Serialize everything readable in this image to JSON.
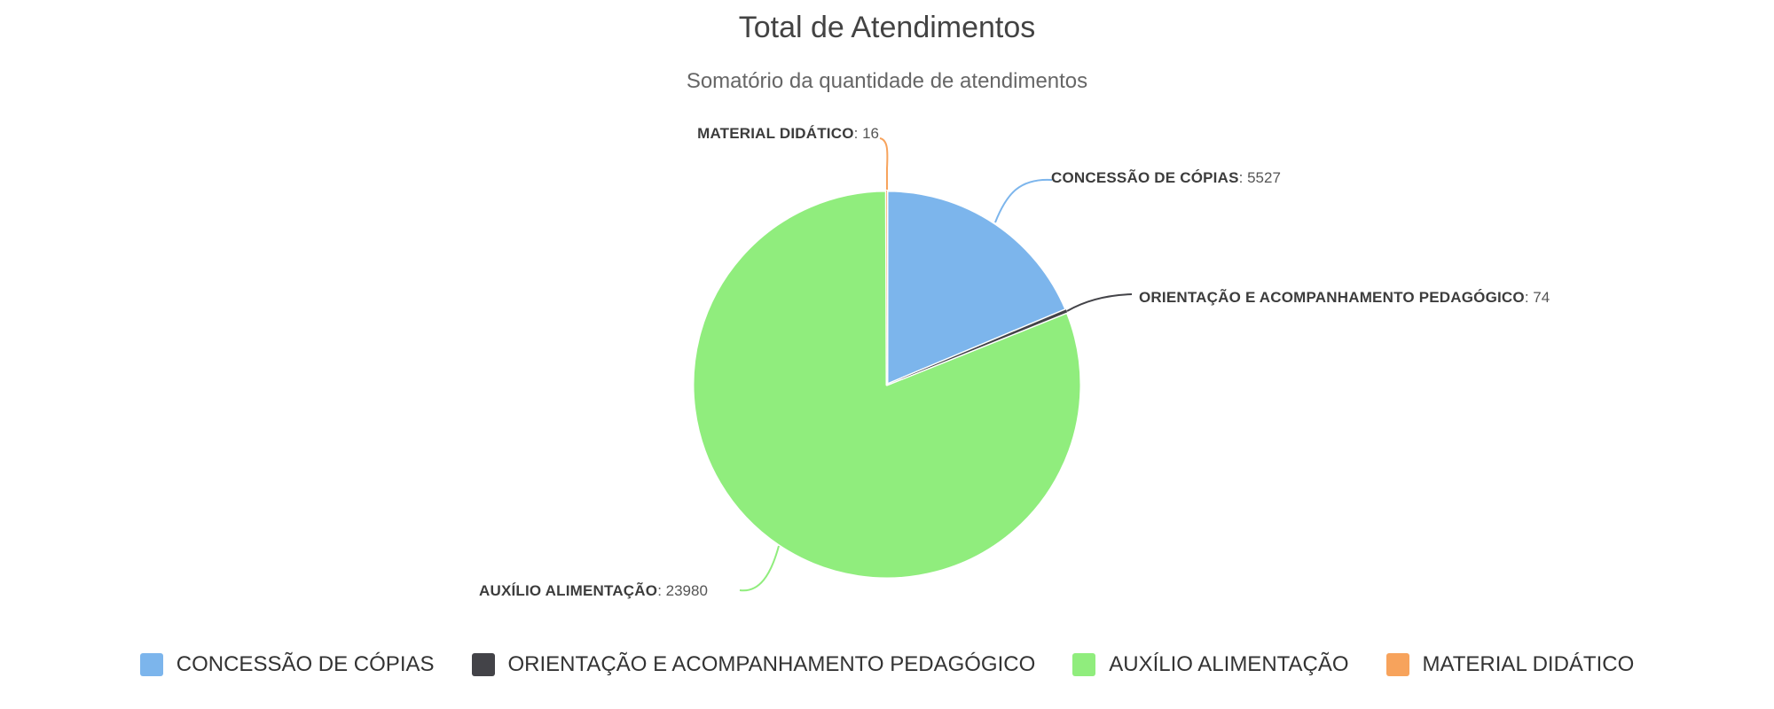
{
  "chart_data": {
    "type": "pie",
    "title": "Total de Atendimentos",
    "subtitle": "Somatório da quantidade de atendimentos",
    "label_separator": ": ",
    "background_color": "#ffffff",
    "slice_border_color": "#ffffff",
    "legend_position": "bottom",
    "direction": "clockwise",
    "start_angle_deg": 0,
    "slices": [
      {
        "label": "CONCESSÃO DE CÓPIAS",
        "value": 5527,
        "color": "#7cb5ec"
      },
      {
        "label": "ORIENTAÇÃO E ACOMPANHAMENTO PEDAGÓGICO",
        "value": 74,
        "color": "#434348"
      },
      {
        "label": "AUXÍLIO ALIMENTAÇÃO",
        "value": 23980,
        "color": "#90ed7d"
      },
      {
        "label": "MATERIAL DIDÁTICO",
        "value": 16,
        "color": "#f7a35c"
      }
    ],
    "legend": [
      "CONCESSÃO DE CÓPIAS",
      "ORIENTAÇÃO E ACOMPANHAMENTO PEDAGÓGICO",
      "AUXÍLIO ALIMENTAÇÃO",
      "MATERIAL DIDÁTICO"
    ]
  }
}
